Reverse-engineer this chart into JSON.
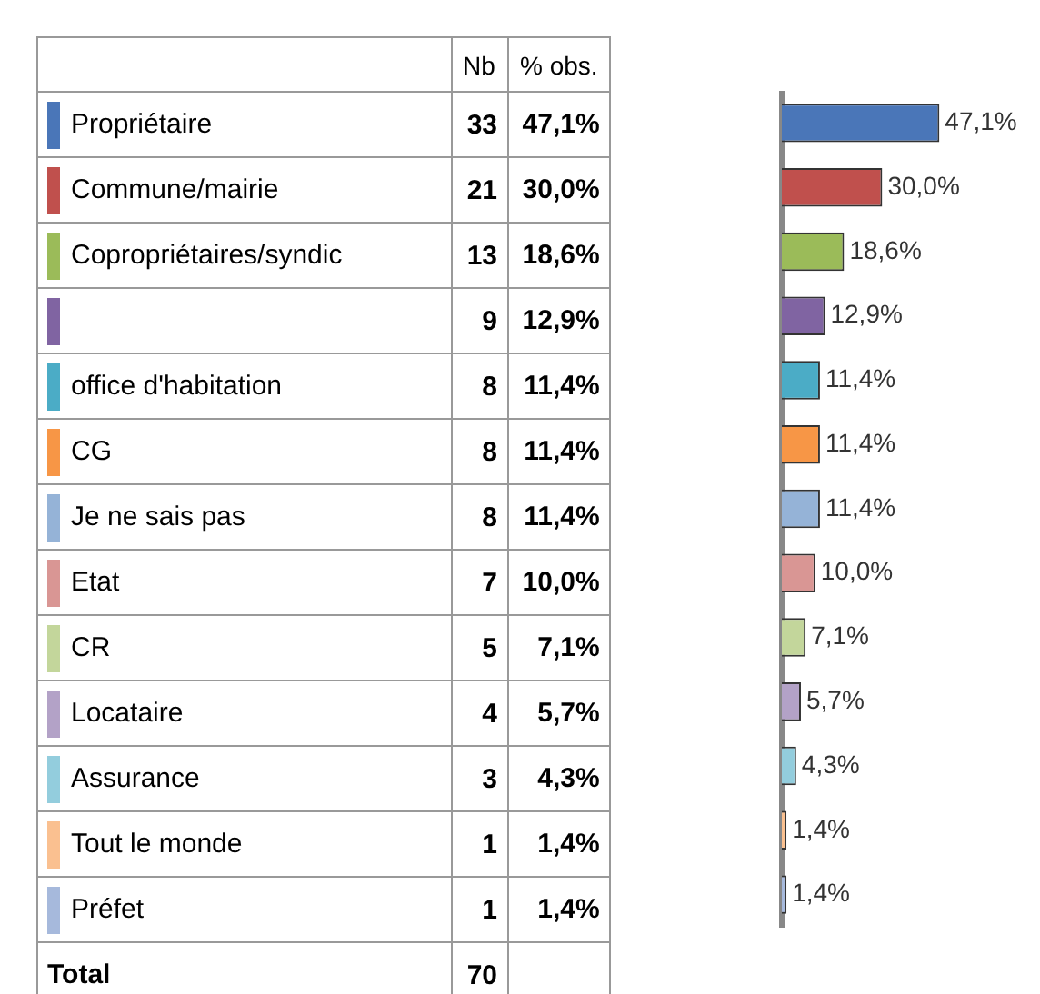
{
  "chart_data": [
    {
      "type": "other",
      "colors": [
        "#4a76b8",
        "#c0504d",
        "#9bbb59",
        "#8064a2",
        "#4bacc6",
        "#f79646",
        "#95b3d7",
        "#d99694",
        "#c3d69b",
        "#b3a2c7",
        "#93cddd",
        "#fac090",
        "#a6b9dc"
      ],
      "values": [
        33,
        21,
        13,
        9,
        8,
        8,
        8,
        7,
        5,
        4,
        3,
        1,
        1
      ],
      "data_labels": true,
      "annotations": [
        "Nb",
        "% obs.",
        "Total",
        "70"
      ]
    },
    {
      "type": "bar",
      "orientation": "horizontal",
      "categories": [
        "Propriétaire",
        "Commune/mairie",
        "Copropriétaires/syndic",
        null,
        "office d'habitation",
        "CG",
        "Je ne sais pas",
        "Etat",
        "CR",
        "Locataire",
        "Assurance",
        "Tout le monde",
        "Préfet"
      ],
      "values": [
        47.1,
        30.0,
        18.6,
        12.9,
        11.4,
        11.4,
        11.4,
        10.0,
        7.1,
        5.7,
        4.3,
        1.4,
        1.4
      ],
      "colors": [
        "#4a76b8",
        "#c0504d",
        "#9bbb59",
        "#8064a2",
        "#4bacc6",
        "#f79646",
        "#95b3d7",
        "#d99694",
        "#c3d69b",
        "#b3a2c7",
        "#93cddd",
        "#fac090",
        "#a6b9dc"
      ],
      "value_labels": [
        "47,1%",
        "30,0%",
        "18,6%",
        "12,9%",
        "11,4%",
        "11,4%",
        "11,4%",
        "10,0%",
        "7,1%",
        "5,7%",
        "4,3%",
        "1,4%",
        "1,4%"
      ]
    }
  ]
}
